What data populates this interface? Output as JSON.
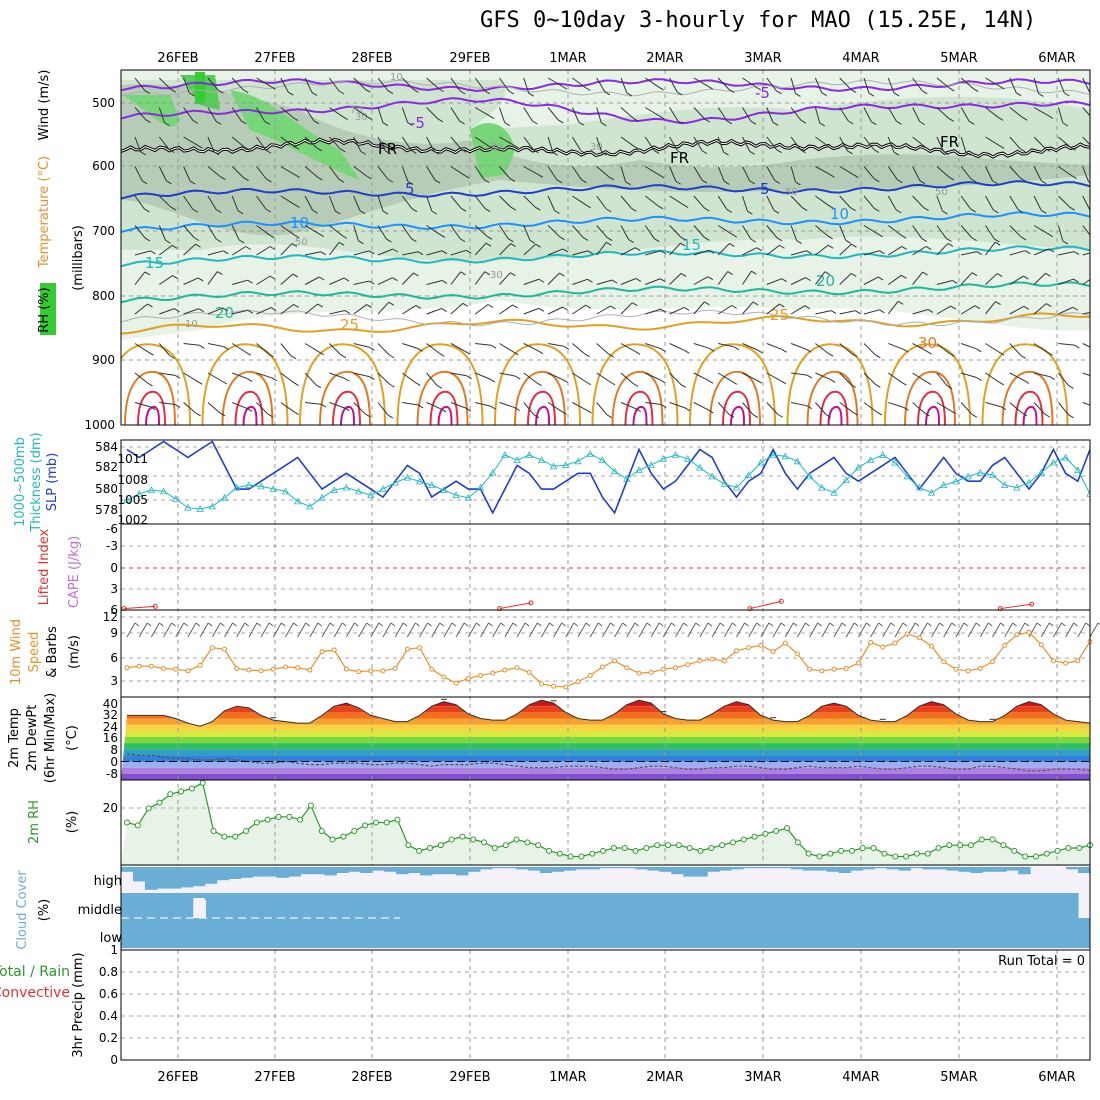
{
  "header": {
    "title": "GFS 0~10day 3-hourly for MAO (15.25E, 14N)"
  },
  "dates": [
    "26FEB",
    "27FEB",
    "28FEB",
    "29FEB",
    "1MAR",
    "2MAR",
    "3MAR",
    "4MAR",
    "5MAR",
    "6MAR"
  ],
  "colors": {
    "slp": "#1f3fc8",
    "thickness": "#20b8c0",
    "lifted": "#e03030",
    "wind10m": "#e8902a",
    "rh": "#2a9a2a",
    "cloud": "#6aaed6",
    "temp_contour_warm": "#e0a020",
    "temp_contour_cold": "#20a0e0",
    "freezing": "#000000"
  },
  "panels": {
    "upper": {
      "ylabel": "(millibars)",
      "side_labels": [
        "Wind (m/s)",
        "Temperature (°C)",
        "RH (%)"
      ],
      "yticks": [
        "500",
        "600",
        "700",
        "800",
        "900",
        "1000"
      ],
      "contour_labels": [
        "-5",
        "-5",
        "FR",
        "FR",
        "FR",
        "5",
        "5",
        "10",
        "10",
        "15",
        "15",
        "20",
        "20",
        "25",
        "25",
        "30",
        "10",
        "30",
        "30",
        "50",
        "70",
        "50",
        "10",
        "30",
        "50",
        "30"
      ]
    },
    "slp": {
      "side_labels": [
        "1000~500mb",
        "Thickness (dm)",
        "SLP (mb)"
      ],
      "left_ticks": [
        "584",
        "582",
        "580",
        "578"
      ],
      "right_ticks": [
        "1011",
        "1008",
        "1005",
        "1002"
      ]
    },
    "cape": {
      "side_labels": [
        "Lifted Index",
        "CAPE (J/kg)"
      ],
      "yticks": [
        "-3",
        "0",
        "3",
        "6"
      ],
      "top_tick": "-6"
    },
    "wind10m": {
      "side_labels": [
        "10m Wind",
        "Speed",
        "& Barbs",
        "(m/s)"
      ],
      "yticks": [
        "12",
        "9",
        "6",
        "3"
      ]
    },
    "temp2m": {
      "side_labels": [
        "2m Temp",
        "2m DewPt",
        "(6hr Min/Max)",
        "(°C)"
      ],
      "yticks": [
        "40",
        "32",
        "24",
        "16",
        "8",
        "0",
        "-8"
      ]
    },
    "rh2m": {
      "side_labels": [
        "2m RH",
        "(%)"
      ],
      "yticks": [
        "20"
      ]
    },
    "cloud": {
      "side_labels": [
        "Cloud Cover",
        "(%)"
      ],
      "levels": [
        "high",
        "middle",
        "low"
      ]
    },
    "precip": {
      "side_labels": [
        "Total / Rain",
        "Convective",
        "3hr Precip (mm)"
      ],
      "yticks": [
        "0.8",
        "0.6",
        "0.4",
        "0.2",
        "0"
      ],
      "top_tick": "1",
      "run_total": "Run Total = 0"
    }
  },
  "chart_data": [
    {
      "type": "line",
      "title": "1000~500mb Thickness (dm) / SLP (mb)",
      "name": "SLP (mb)",
      "x": "3-hourly steps from 26FEB",
      "values": [
        1011,
        1010,
        1011,
        1012,
        1011,
        1010,
        1011,
        1012,
        1009,
        1006,
        1006,
        1007,
        1008,
        1009,
        1010,
        1008,
        1006,
        1007,
        1008,
        1007,
        1006,
        1005,
        1007,
        1009,
        1008,
        1005,
        1006,
        1007,
        1006,
        1006,
        1003,
        1006,
        1009,
        1008,
        1006,
        1006,
        1007,
        1008,
        1008,
        1005,
        1003,
        1007,
        1011,
        1008,
        1006,
        1007,
        1009,
        1011,
        1010,
        1007,
        1005,
        1007,
        1008,
        1011,
        1008,
        1006,
        1008,
        1009,
        1010,
        1008,
        1007,
        1008,
        1009,
        1010,
        1008,
        1006,
        1008,
        1010,
        1008,
        1007,
        1007,
        1009,
        1010,
        1008,
        1006,
        1008,
        1011,
        1008,
        1007,
        1011
      ],
      "ylim": [
        1002,
        1012
      ]
    },
    {
      "type": "line",
      "name": "Thickness (dm)",
      "values": [
        579.8,
        580.3,
        580.6,
        580.5,
        579.9,
        579.2,
        579.1,
        579.3,
        580.0,
        580.8,
        581.0,
        580.9,
        580.7,
        580.5,
        579.7,
        579.3,
        580.0,
        580.6,
        580.8,
        580.5,
        580.2,
        580.7,
        581.2,
        581.6,
        581.3,
        581.0,
        580.6,
        580.2,
        580.0,
        580.8,
        582.0,
        583.4,
        583.0,
        583.4,
        583.0,
        582.5,
        582.6,
        582.9,
        583.5,
        583.0,
        582.1,
        581.5,
        582.2,
        582.6,
        583.1,
        583.4,
        583.1,
        582.4,
        581.7,
        581.1,
        580.8,
        581.8,
        582.8,
        583.4,
        583.3,
        582.9,
        581.7,
        580.8,
        580.4,
        581.4,
        582.4,
        583.0,
        583.4,
        582.8,
        581.7,
        580.8,
        580.4,
        581.0,
        581.3,
        581.7,
        582.0,
        581.8,
        581.0,
        580.8,
        581.2,
        582.0,
        582.8,
        583.2,
        582.2,
        580.3
      ],
      "ylim": [
        578,
        584.5
      ]
    },
    {
      "type": "line",
      "title": "Lifted Index / CAPE (J/kg)",
      "name": "Lifted Index",
      "values": [
        5.8,
        5.5,
        null,
        null,
        null,
        null,
        null,
        null,
        null,
        null,
        null,
        null,
        5.8,
        5.0,
        null,
        null,
        null,
        null,
        null,
        null,
        5.8,
        4.8,
        null,
        null,
        null,
        null,
        null,
        null,
        5.8,
        5.2
      ],
      "ylim": [
        -6,
        6
      ]
    },
    {
      "type": "line",
      "title": "10m Wind Speed & Barbs (m/s)",
      "name": "10m Wind Speed",
      "values": [
        5.2,
        5.4,
        5.4,
        5.1,
        5.0,
        4.8,
        5.5,
        7.8,
        7.6,
        5.1,
        4.9,
        4.8,
        5.0,
        5.3,
        5.2,
        4.9,
        7.3,
        7.5,
        5.0,
        4.7,
        4.8,
        4.8,
        5.1,
        7.6,
        7.8,
        5.0,
        4.0,
        3.2,
        3.8,
        4.2,
        4.5,
        4.9,
        5.2,
        4.6,
        3.1,
        2.8,
        2.7,
        3.4,
        4.2,
        5.3,
        6.1,
        5.2,
        4.5,
        4.6,
        5.0,
        5.2,
        5.6,
        6.1,
        6.3,
        6.1,
        7.4,
        7.8,
        8.1,
        7.3,
        8.4,
        7.0,
        5.0,
        4.8,
        5.0,
        5.1,
        5.8,
        8.5,
        7.9,
        8.4,
        9.6,
        9.1,
        8.0,
        6.0,
        5.0,
        4.8,
        5.1,
        6.0,
        8.1,
        9.5,
        9.8,
        8.2,
        6.1,
        5.8,
        6.1,
        8.6
      ],
      "ylim": [
        1.5,
        12
      ]
    },
    {
      "type": "area",
      "title": "2m Temp / 2m DewPt (°C)",
      "name": "2m Temp",
      "values": [
        30,
        30,
        30,
        30,
        28,
        25,
        23,
        26,
        33,
        36,
        35,
        30,
        27,
        26,
        25,
        25,
        30,
        36,
        38,
        35,
        30,
        28,
        26,
        26,
        30,
        36,
        39,
        37,
        31,
        28,
        27,
        27,
        31,
        37,
        40,
        38,
        32,
        28,
        27,
        27,
        31,
        37,
        40,
        38,
        31,
        28,
        27,
        27,
        31,
        36,
        39,
        37,
        30,
        27,
        26,
        26,
        30,
        36,
        38,
        36,
        30,
        27,
        26,
        26,
        30,
        36,
        39,
        37,
        31,
        27,
        26,
        26,
        30,
        36,
        39,
        37,
        31,
        27,
        26,
        25
      ],
      "ylim": [
        -12,
        42
      ]
    },
    {
      "type": "line",
      "name": "2m DewPt",
      "values": [
        5,
        4,
        4,
        3,
        2,
        2,
        1,
        1,
        2,
        1,
        0,
        -1,
        -1,
        0,
        -1,
        -2,
        -2,
        -1,
        -1,
        -1,
        -2,
        -2,
        -1,
        -1,
        -2,
        -3,
        -2,
        -2,
        -2,
        -1,
        -1,
        -2,
        -3,
        -4,
        -4,
        -4,
        -3,
        -3,
        -3,
        -4,
        -5,
        -5,
        -4,
        -3,
        -3,
        -4,
        -5,
        -5,
        -4,
        -4,
        -3,
        -3,
        -4,
        -5,
        -5,
        -4,
        -3,
        -4,
        -4,
        -4,
        -3,
        -4,
        -5,
        -5,
        -4,
        -3,
        -3,
        -4,
        -5,
        -5,
        -3,
        -3,
        -4,
        -5,
        -6,
        -6,
        -5,
        -5,
        -5,
        -6
      ]
    },
    {
      "type": "area",
      "title": "2m RH (%)",
      "name": "2m RH",
      "values": [
        15,
        14,
        20,
        22,
        25,
        26,
        27,
        29,
        12,
        10,
        10,
        12,
        15,
        16,
        17,
        17,
        16,
        21,
        12,
        9,
        10,
        12,
        14,
        15,
        15,
        16,
        7,
        5,
        6,
        7,
        9,
        10,
        9,
        8,
        6,
        7,
        9,
        8,
        7,
        5,
        4,
        3,
        3,
        4,
        5,
        6,
        6,
        5,
        6,
        7,
        7,
        7,
        6,
        5,
        6,
        7,
        8,
        9,
        10,
        11,
        12,
        13,
        8,
        4,
        3,
        4,
        5,
        5,
        6,
        6,
        4,
        3,
        3,
        4,
        4,
        6,
        7,
        7,
        7,
        9,
        9,
        7,
        5,
        3,
        3,
        4,
        5,
        6,
        6,
        7
      ],
      "ylim": [
        0,
        30
      ]
    },
    {
      "type": "bar",
      "title": "Cloud Cover (%)",
      "name": "high",
      "values": [
        20,
        60,
        95,
        90,
        90,
        85,
        80,
        70,
        55,
        50,
        45,
        40,
        40,
        45,
        40,
        30,
        30,
        35,
        25,
        20,
        25,
        15,
        20,
        30,
        25,
        35,
        30,
        30,
        35,
        20,
        10,
        5,
        5,
        10,
        15,
        25,
        20,
        15,
        10,
        10,
        5,
        5,
        5,
        10,
        15,
        20,
        30,
        40,
        40,
        20,
        15,
        10,
        5,
        5,
        5,
        5,
        10,
        15,
        15,
        20,
        25,
        15,
        10,
        5,
        10,
        15,
        5,
        10,
        10,
        15,
        20,
        25,
        20,
        20,
        15,
        30,
        0,
        0,
        0,
        10,
        25
      ]
    },
    {
      "type": "bar",
      "name": "middle",
      "values": [
        100,
        100,
        100,
        100,
        100,
        100,
        20,
        100,
        100,
        100,
        100,
        100,
        100,
        100,
        100,
        100,
        100,
        100,
        100,
        100,
        100,
        100,
        100,
        100,
        100,
        100,
        100,
        100,
        100,
        100,
        100,
        100,
        100,
        100,
        100,
        100,
        100,
        100,
        100,
        100,
        100,
        100,
        100,
        100,
        100,
        100,
        100,
        100,
        100,
        100,
        100,
        100,
        100,
        100,
        100,
        100,
        100,
        100,
        100,
        100,
        100,
        100,
        100,
        100,
        100,
        100,
        100,
        100,
        100,
        100,
        100,
        100,
        100,
        100,
        100,
        100,
        100,
        100,
        100,
        100
      ]
    },
    {
      "type": "bar",
      "title": "3hr Precip (mm)",
      "name": "Total / Rain",
      "values": [
        0,
        0,
        0,
        0,
        0,
        0,
        0,
        0,
        0,
        0
      ],
      "ylim": [
        0,
        1
      ]
    }
  ]
}
